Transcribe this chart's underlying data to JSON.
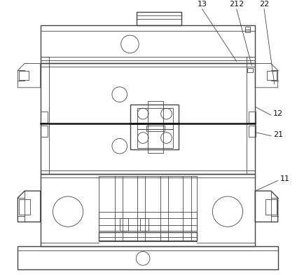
{
  "bg_color": "#ffffff",
  "lc": "#444444",
  "lc_dark": "#111111",
  "fig_width": 4.24,
  "fig_height": 3.92,
  "dpi": 100
}
